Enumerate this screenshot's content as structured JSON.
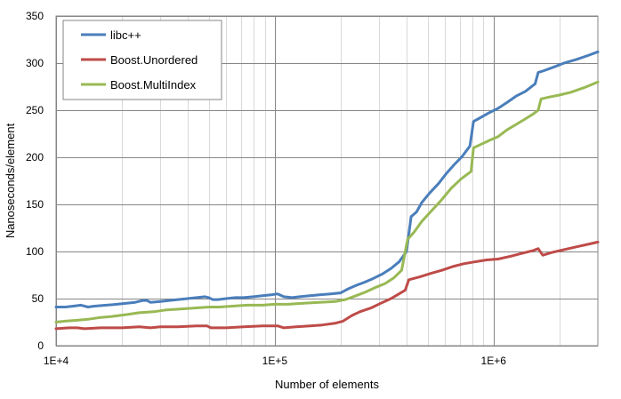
{
  "chart_data": {
    "type": "line",
    "title": "",
    "xlabel": "Number of elements",
    "ylabel": "Nanoseconds/element",
    "xscale": "log",
    "xlim": [
      10000,
      3000000
    ],
    "ylim": [
      0,
      350
    ],
    "grid": true,
    "legend_position": "top-left",
    "x_ticks": [
      {
        "value": 10000,
        "label": "1E+4"
      },
      {
        "value": 100000,
        "label": "1E+5"
      },
      {
        "value": 1000000,
        "label": "1E+6"
      }
    ],
    "y_ticks": [
      {
        "value": 0,
        "label": "0"
      },
      {
        "value": 50,
        "label": "50"
      },
      {
        "value": 100,
        "label": "100"
      },
      {
        "value": 150,
        "label": "150"
      },
      {
        "value": 200,
        "label": "200"
      },
      {
        "value": 250,
        "label": "250"
      },
      {
        "value": 300,
        "label": "300"
      },
      {
        "value": 350,
        "label": "350"
      }
    ],
    "series": [
      {
        "name": "libc++",
        "color": "#4a7ebb",
        "points": [
          [
            10000,
            41
          ],
          [
            11000,
            41
          ],
          [
            12000,
            42
          ],
          [
            13000,
            43
          ],
          [
            14000,
            41
          ],
          [
            15000,
            42
          ],
          [
            17000,
            43
          ],
          [
            19000,
            44
          ],
          [
            21000,
            45
          ],
          [
            23000,
            46
          ],
          [
            25000,
            48
          ],
          [
            26000,
            48
          ],
          [
            27000,
            46
          ],
          [
            30000,
            47
          ],
          [
            33000,
            48
          ],
          [
            36000,
            49
          ],
          [
            40000,
            50
          ],
          [
            44000,
            51
          ],
          [
            48000,
            52
          ],
          [
            50000,
            51
          ],
          [
            52000,
            49
          ],
          [
            55000,
            49
          ],
          [
            60000,
            50
          ],
          [
            66000,
            51
          ],
          [
            72000,
            51
          ],
          [
            80000,
            52
          ],
          [
            88000,
            53
          ],
          [
            96000,
            54
          ],
          [
            103000,
            55
          ],
          [
            110000,
            52
          ],
          [
            120000,
            51
          ],
          [
            130000,
            52
          ],
          [
            145000,
            53
          ],
          [
            160000,
            54
          ],
          [
            180000,
            55
          ],
          [
            200000,
            56
          ],
          [
            215000,
            60
          ],
          [
            235000,
            64
          ],
          [
            255000,
            67
          ],
          [
            280000,
            71
          ],
          [
            310000,
            76
          ],
          [
            340000,
            82
          ],
          [
            370000,
            89
          ],
          [
            400000,
            100
          ],
          [
            420000,
            137
          ],
          [
            445000,
            142
          ],
          [
            470000,
            152
          ],
          [
            510000,
            162
          ],
          [
            560000,
            172
          ],
          [
            610000,
            183
          ],
          [
            660000,
            192
          ],
          [
            720000,
            201
          ],
          [
            780000,
            212
          ],
          [
            810000,
            238
          ],
          [
            870000,
            242
          ],
          [
            950000,
            247
          ],
          [
            1050000,
            252
          ],
          [
            1150000,
            258
          ],
          [
            1270000,
            265
          ],
          [
            1400000,
            270
          ],
          [
            1550000,
            278
          ],
          [
            1600000,
            290
          ],
          [
            1700000,
            292
          ],
          [
            1900000,
            296
          ],
          [
            2100000,
            300
          ],
          [
            2400000,
            304
          ],
          [
            2700000,
            308
          ],
          [
            3000000,
            312
          ]
        ]
      },
      {
        "name": "Boost.Unordered",
        "color": "#be4b48",
        "points": [
          [
            10000,
            18
          ],
          [
            11500,
            19
          ],
          [
            12500,
            19
          ],
          [
            13500,
            18
          ],
          [
            16000,
            19
          ],
          [
            20000,
            19
          ],
          [
            24000,
            20
          ],
          [
            27000,
            19
          ],
          [
            30000,
            20
          ],
          [
            36000,
            20
          ],
          [
            44000,
            21
          ],
          [
            49000,
            21
          ],
          [
            51000,
            19
          ],
          [
            60000,
            19
          ],
          [
            72000,
            20
          ],
          [
            88000,
            21
          ],
          [
            103000,
            21
          ],
          [
            110000,
            19
          ],
          [
            125000,
            20
          ],
          [
            145000,
            21
          ],
          [
            165000,
            22
          ],
          [
            190000,
            24
          ],
          [
            205000,
            26
          ],
          [
            225000,
            32
          ],
          [
            245000,
            36
          ],
          [
            275000,
            40
          ],
          [
            305000,
            45
          ],
          [
            340000,
            50
          ],
          [
            370000,
            55
          ],
          [
            395000,
            59
          ],
          [
            410000,
            70
          ],
          [
            460000,
            73
          ],
          [
            520000,
            77
          ],
          [
            580000,
            80
          ],
          [
            650000,
            84
          ],
          [
            730000,
            87
          ],
          [
            820000,
            89
          ],
          [
            930000,
            91
          ],
          [
            1050000,
            92
          ],
          [
            1200000,
            95
          ],
          [
            1350000,
            98
          ],
          [
            1520000,
            101
          ],
          [
            1600000,
            103
          ],
          [
            1680000,
            96
          ],
          [
            1850000,
            99
          ],
          [
            2100000,
            102
          ],
          [
            2400000,
            105
          ],
          [
            2750000,
            108
          ],
          [
            3000000,
            110
          ]
        ]
      },
      {
        "name": "Boost.MultiIndex",
        "color": "#98b954",
        "points": [
          [
            10000,
            25
          ],
          [
            11000,
            26
          ],
          [
            12500,
            27
          ],
          [
            14000,
            28
          ],
          [
            16000,
            30
          ],
          [
            18000,
            31
          ],
          [
            21000,
            33
          ],
          [
            24000,
            35
          ],
          [
            28000,
            36
          ],
          [
            32000,
            38
          ],
          [
            37000,
            39
          ],
          [
            43000,
            40
          ],
          [
            50000,
            41
          ],
          [
            56000,
            41
          ],
          [
            64000,
            42
          ],
          [
            75000,
            43
          ],
          [
            88000,
            43
          ],
          [
            100000,
            44
          ],
          [
            115000,
            44
          ],
          [
            135000,
            45
          ],
          [
            160000,
            46
          ],
          [
            190000,
            47
          ],
          [
            210000,
            49
          ],
          [
            235000,
            53
          ],
          [
            260000,
            57
          ],
          [
            290000,
            62
          ],
          [
            320000,
            66
          ],
          [
            350000,
            72
          ],
          [
            380000,
            80
          ],
          [
            405000,
            113
          ],
          [
            435000,
            121
          ],
          [
            470000,
            132
          ],
          [
            520000,
            143
          ],
          [
            580000,
            155
          ],
          [
            640000,
            167
          ],
          [
            710000,
            177
          ],
          [
            790000,
            185
          ],
          [
            810000,
            210
          ],
          [
            880000,
            214
          ],
          [
            960000,
            218
          ],
          [
            1050000,
            222
          ],
          [
            1150000,
            229
          ],
          [
            1250000,
            234
          ],
          [
            1380000,
            240
          ],
          [
            1520000,
            246
          ],
          [
            1600000,
            250
          ],
          [
            1650000,
            262
          ],
          [
            1800000,
            264
          ],
          [
            2000000,
            266
          ],
          [
            2250000,
            269
          ],
          [
            2600000,
            274
          ],
          [
            3000000,
            280
          ]
        ]
      }
    ]
  }
}
